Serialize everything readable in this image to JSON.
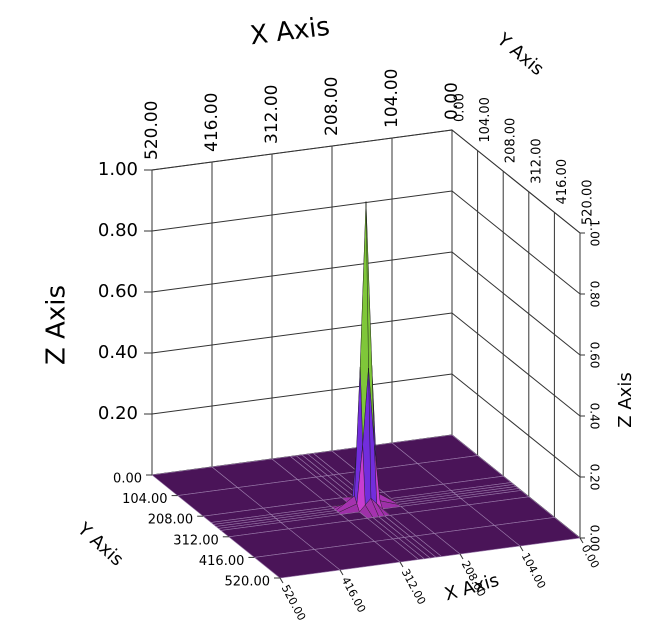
{
  "chart_data": {
    "type": "surface",
    "x_label": "X Axis",
    "y_label": "Y Axis",
    "z_label": "Z Axis",
    "x": [
      0,
      104,
      208,
      240,
      250,
      260,
      270,
      280,
      312,
      416,
      520
    ],
    "y": [
      0,
      104,
      208,
      240,
      250,
      260,
      270,
      280,
      312,
      416,
      520
    ],
    "z": [
      [
        0,
        0,
        0,
        0,
        0,
        0,
        0,
        0,
        0,
        0,
        0
      ],
      [
        0,
        0,
        0,
        0,
        0,
        0,
        0,
        0,
        0,
        0,
        0
      ],
      [
        0,
        0,
        0,
        0,
        0,
        0,
        0,
        0,
        0,
        0,
        0
      ],
      [
        0,
        0,
        0,
        0,
        0.02,
        0.04,
        0.02,
        0,
        0,
        0,
        0
      ],
      [
        0,
        0,
        0,
        0.02,
        0.21,
        0.46,
        0.21,
        0.02,
        0,
        0,
        0
      ],
      [
        0,
        0,
        0,
        0.04,
        0.46,
        1,
        0.46,
        0.04,
        0,
        0,
        0
      ],
      [
        0,
        0,
        0,
        0.02,
        0.21,
        0.46,
        0.21,
        0.02,
        0,
        0,
        0
      ],
      [
        0,
        0,
        0,
        0,
        0.02,
        0.04,
        0.02,
        0,
        0,
        0,
        0
      ],
      [
        0,
        0,
        0,
        0,
        0,
        0,
        0,
        0,
        0,
        0,
        0
      ],
      [
        0,
        0,
        0,
        0,
        0,
        0,
        0,
        0,
        0,
        0,
        0
      ],
      [
        0,
        0,
        0,
        0,
        0,
        0,
        0,
        0,
        0,
        0,
        0
      ]
    ],
    "xlim": [
      0,
      520
    ],
    "ylim": [
      0,
      520
    ],
    "zlim": [
      0,
      1
    ],
    "xticks": [
      {
        "value": 0,
        "label": "0.00"
      },
      {
        "value": 104,
        "label": "104.00"
      },
      {
        "value": 208,
        "label": "208.00"
      },
      {
        "value": 312,
        "label": "312.00"
      },
      {
        "value": 416,
        "label": "416.00"
      },
      {
        "value": 520,
        "label": "520.00"
      }
    ],
    "yticks": [
      {
        "value": 0,
        "label": "0.00"
      },
      {
        "value": 104,
        "label": "104.00"
      },
      {
        "value": 208,
        "label": "208.00"
      },
      {
        "value": 312,
        "label": "312.00"
      },
      {
        "value": 416,
        "label": "416.00"
      },
      {
        "value": 520,
        "label": "520.00"
      }
    ],
    "zticks": [
      {
        "value": 0,
        "label": "0.00"
      },
      {
        "value": 0.2,
        "label": "0.20"
      },
      {
        "value": 0.4,
        "label": "0.40"
      },
      {
        "value": 0.6,
        "label": "0.60"
      },
      {
        "value": 0.8,
        "label": "0.80"
      },
      {
        "value": 1,
        "label": "1.00"
      }
    ],
    "colormap": [
      "#4a1458",
      "#d040d8",
      "#3020e0",
      "#20b050",
      "#e8e020",
      "#e02010",
      "#601010"
    ],
    "grid": true
  }
}
